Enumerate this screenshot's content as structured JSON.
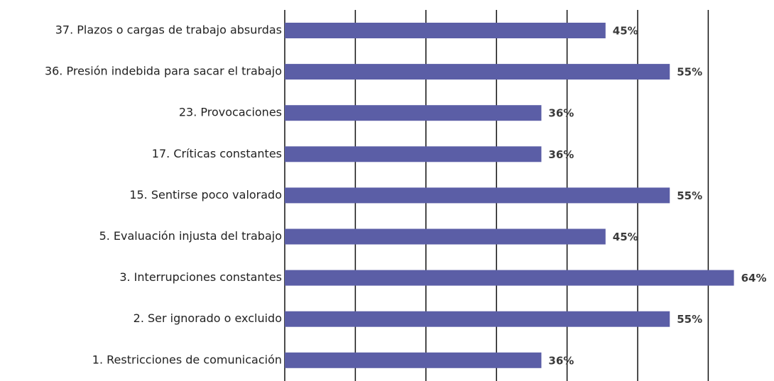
{
  "chart_data": {
    "type": "bar",
    "orientation": "horizontal",
    "categories": [
      "37. Plazos o cargas de trabajo absurdas",
      "36. Presión indebida para sacar el trabajo",
      "23. Provocaciones",
      "17. Críticas constantes",
      "15. Sentirse poco valorado",
      "5. Evaluación injusta del trabajo",
      "3. Interrupciones constantes",
      "2. Ser ignorado o excluido",
      "1. Restricciones de comunicación"
    ],
    "values": [
      45.45,
      54.55,
      36.36,
      36.36,
      54.55,
      45.45,
      63.64,
      54.55,
      36.36
    ],
    "value_labels": [
      "45%",
      "55%",
      "36%",
      "36%",
      "55%",
      "45%",
      "64%",
      "55%",
      "36%"
    ],
    "color": "#5b5ea6",
    "xlim": [
      0,
      69
    ],
    "xticks": [
      0,
      10,
      20,
      30,
      40,
      50,
      60
    ],
    "grid": true
  }
}
